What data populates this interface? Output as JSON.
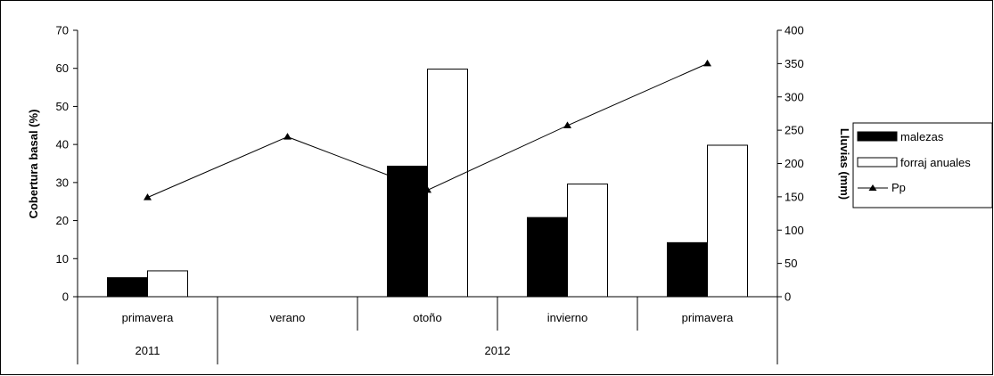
{
  "chart_data": {
    "type": "bar",
    "categories": [
      "primavera",
      "verano",
      "otoño",
      "invierno",
      "primavera"
    ],
    "groups": [
      {
        "label": "2011",
        "span": 1
      },
      {
        "label": "2012",
        "span": 4
      }
    ],
    "series": [
      {
        "name": "malezas",
        "type": "bar",
        "axis": "left",
        "color": "#000000",
        "values": [
          5,
          null,
          34.3,
          20.8,
          14.2
        ]
      },
      {
        "name": "forraj anuales",
        "type": "bar",
        "axis": "left",
        "color": "#ffffff",
        "values": [
          6.8,
          null,
          59.8,
          29.6,
          39.8
        ]
      },
      {
        "name": "Pp",
        "type": "line",
        "axis": "right",
        "color": "#000000",
        "marker": "triangle",
        "values": [
          149,
          240,
          160,
          257,
          350
        ]
      }
    ],
    "ylabel": "Cobertura basal (%)",
    "y2label": "Lluvias (mm)",
    "ylim": [
      0,
      70
    ],
    "yticks": [
      0,
      10,
      20,
      30,
      40,
      50,
      60,
      70
    ],
    "y2lim": [
      0,
      400
    ],
    "y2ticks": [
      0,
      50,
      100,
      150,
      200,
      250,
      300,
      350,
      400
    ],
    "legend_position": "right",
    "grid": false
  }
}
